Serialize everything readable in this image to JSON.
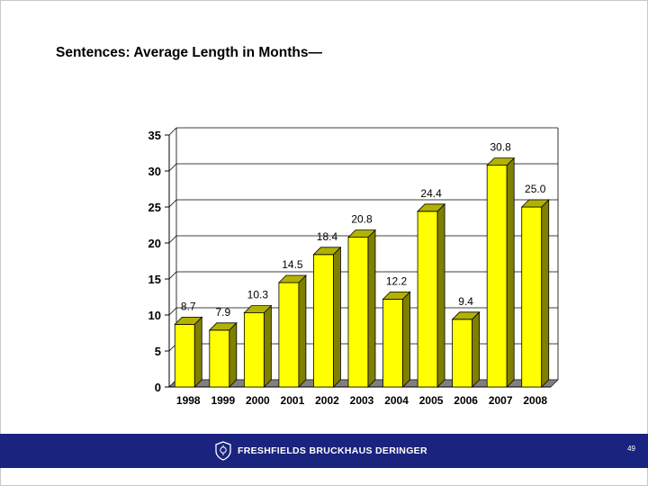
{
  "slide": {
    "title": "Sentences:  Average Length in Months—",
    "page_number": "49"
  },
  "footer": {
    "logo_text": "FRESHFIELDS BRUCKHAUS DERINGER",
    "logo_icon": "crest-icon"
  },
  "colors": {
    "bar_front": "#ffff00",
    "bar_side": "#7f7f00",
    "bar_top": "#b2b200",
    "footer_bg": "#1a237e"
  },
  "chart_data": {
    "type": "bar",
    "categories": [
      "1998",
      "1999",
      "2000",
      "2001",
      "2002",
      "2003",
      "2004",
      "2005",
      "2006",
      "2007",
      "2008"
    ],
    "values": [
      8.7,
      7.9,
      10.3,
      14.5,
      18.4,
      20.8,
      12.2,
      24.4,
      9.4,
      30.8,
      25.0
    ],
    "data_labels": [
      "8.7",
      "7.9",
      "10.3",
      "14.5",
      "18.4",
      "20.8",
      "12.2",
      "24.4",
      "9.4",
      "30.8",
      "25.0"
    ],
    "y_ticks": [
      "0",
      "5",
      "10",
      "15",
      "20",
      "25",
      "30",
      "35"
    ],
    "ylim": [
      0,
      35
    ],
    "grid": true,
    "style": "3d",
    "xlabel": "",
    "ylabel": ""
  }
}
